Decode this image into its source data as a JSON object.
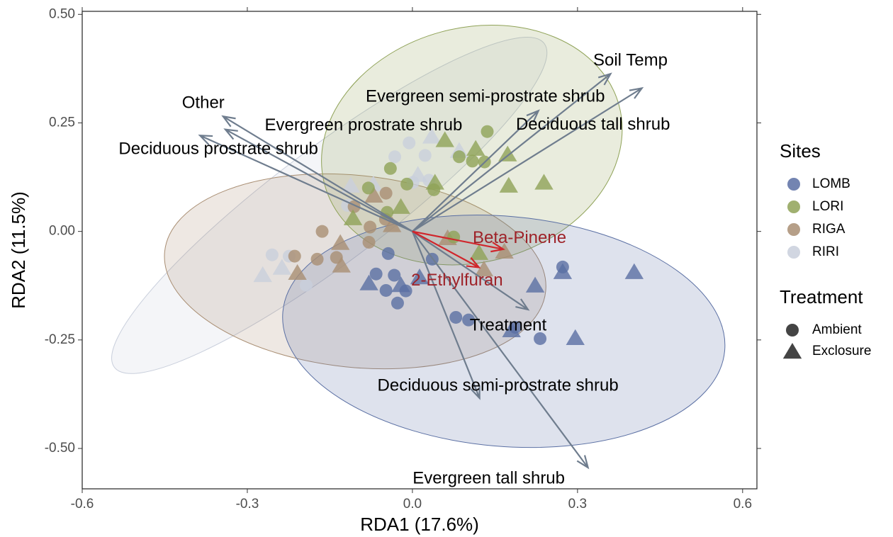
{
  "chart_data": {
    "type": "scatter",
    "x_label": "RDA1 (17.6%)",
    "y_label": "RDA2 (11.5%)",
    "xlim": [
      -0.6,
      0.626
    ],
    "ylim": [
      -0.593,
      0.507
    ],
    "xticks": [
      -0.6,
      -0.3,
      {
        "value": 0,
        "label": "0.0"
      },
      0.3,
      0.6
    ],
    "yticks": [
      {
        "value": 0.5,
        "label": "0.50"
      },
      0.25,
      {
        "value": 0,
        "label": "0.00"
      },
      -0.25,
      {
        "value": -0.5,
        "label": "-0.50"
      }
    ],
    "sites_title": "Sites",
    "sites": [
      {
        "name": "LOMB",
        "color": "#5a6fa3"
      },
      {
        "name": "LORI",
        "color": "#8fa257"
      },
      {
        "name": "RIGA",
        "color": "#a98e73"
      },
      {
        "name": "RIRI",
        "color": "#c9cfdc"
      }
    ],
    "treatment_title": "Treatment",
    "treatments": [
      {
        "name": "Ambient",
        "shape": "circle"
      },
      {
        "name": "Exclosure",
        "shape": "triangle"
      }
    ],
    "ellipses": [
      {
        "site": "RIRI",
        "cx": -0.151,
        "cy": 0.06,
        "rx": 0.489,
        "ry": 0.131,
        "angle": -37
      },
      {
        "site": "RIGA",
        "cx": -0.104,
        "cy": -0.092,
        "rx": 0.348,
        "ry": 0.221,
        "angle": 6
      },
      {
        "site": "LORI",
        "cx": 0.108,
        "cy": 0.199,
        "rx": 0.277,
        "ry": 0.27,
        "angle": -15
      },
      {
        "site": "LOMB",
        "cx": 0.166,
        "cy": -0.23,
        "rx": 0.403,
        "ry": 0.265,
        "angle": 5
      }
    ],
    "series": [
      {
        "site": "RIRI",
        "treatment": "Ambient",
        "x": [
          -0.006,
          0.023,
          -0.032,
          0.001,
          -0.118,
          -0.255,
          -0.224,
          -0.193,
          0.03
        ],
        "y": [
          0.204,
          0.175,
          0.172,
          0.113,
          0.06,
          -0.054,
          -0.057,
          -0.124,
          0.118
        ]
      },
      {
        "site": "RIRI",
        "treatment": "Exclosure",
        "x": [
          0.035,
          0.085,
          -0.112,
          -0.272,
          -0.237,
          0.01,
          -0.071
        ],
        "y": [
          0.219,
          0.186,
          0.106,
          -0.1,
          -0.083,
          0.131,
          0.109
        ]
      },
      {
        "site": "RIGA",
        "treatment": "Ambient",
        "x": [
          -0.164,
          -0.214,
          -0.173,
          -0.077,
          -0.048,
          -0.079,
          -0.106,
          -0.138,
          -0.049
        ],
        "y": [
          0.0,
          -0.057,
          -0.064,
          0.01,
          0.088,
          -0.025,
          0.057,
          -0.06,
          0.028
        ]
      },
      {
        "site": "RIGA",
        "treatment": "Exclosure",
        "x": [
          -0.131,
          -0.129,
          -0.07,
          -0.037,
          0.167,
          0.13,
          -0.209,
          0.064
        ],
        "y": [
          -0.026,
          -0.078,
          0.083,
          0.015,
          -0.046,
          -0.087,
          -0.095,
          -0.015
        ]
      },
      {
        "site": "LORI",
        "treatment": "Ambient",
        "x": [
          0.136,
          0.085,
          0.109,
          0.131,
          -0.04,
          -0.01,
          -0.046,
          -0.08,
          0.075,
          0.039
        ],
        "y": [
          0.23,
          0.172,
          0.162,
          0.16,
          0.145,
          0.109,
          0.044,
          0.1,
          -0.013,
          0.096
        ]
      },
      {
        "site": "LORI",
        "treatment": "Exclosure",
        "x": [
          0.059,
          0.115,
          0.173,
          0.239,
          0.175,
          -0.021,
          0.041,
          -0.108,
          0.121
        ],
        "y": [
          0.211,
          0.191,
          0.178,
          0.113,
          0.106,
          0.057,
          0.113,
          0.031,
          -0.049
        ]
      },
      {
        "site": "LOMB",
        "treatment": "Ambient",
        "x": [
          -0.044,
          -0.066,
          -0.033,
          -0.048,
          -0.012,
          -0.027,
          0.036,
          0.079,
          0.102,
          0.273,
          0.232,
          0.187
        ],
        "y": [
          -0.051,
          -0.098,
          -0.101,
          -0.136,
          -0.137,
          -0.165,
          -0.064,
          -0.198,
          -0.204,
          -0.082,
          -0.247,
          -0.221
        ]
      },
      {
        "site": "LOMB",
        "treatment": "Exclosure",
        "x": [
          -0.079,
          -0.021,
          0.013,
          0.223,
          0.273,
          0.403,
          0.18,
          0.296
        ],
        "y": [
          -0.119,
          -0.123,
          -0.105,
          -0.124,
          -0.093,
          -0.093,
          -0.227,
          -0.245
        ]
      }
    ],
    "arrows": [
      {
        "label": "Soil Temp",
        "x": 0.36,
        "y": 0.363,
        "color": "#6f7d8e",
        "label_color": "#000000"
      },
      {
        "label": "Deciduous tall shrub",
        "x": 0.417,
        "y": 0.33,
        "color": "#6f7d8e",
        "label_color": "#000000"
      },
      {
        "label": "Evergreen semi-prostrate shrub",
        "x": 0.229,
        "y": 0.278,
        "color": "#6f7d8e",
        "label_color": "#000000"
      },
      {
        "label": "Other",
        "x": -0.344,
        "y": 0.265,
        "color": "#6f7d8e",
        "label_color": "#000000"
      },
      {
        "label": "Evergreen prostrate shrub",
        "x": -0.34,
        "y": 0.235,
        "color": "#6f7d8e",
        "label_color": "#000000"
      },
      {
        "label": "Deciduous prostrate shrub",
        "x": -0.386,
        "y": 0.221,
        "color": "#6f7d8e",
        "label_color": "#000000"
      },
      {
        "label": "Treatment",
        "x": 0.21,
        "y": -0.18,
        "color": "#6f7d8e",
        "label_color": "#000000"
      },
      {
        "label": "Deciduous semi-prostrate shrub",
        "x": 0.122,
        "y": -0.384,
        "color": "#6f7d8e",
        "label_color": "#000000"
      },
      {
        "label": "Evergreen tall shrub",
        "x": 0.319,
        "y": -0.544,
        "color": "#6f7d8e",
        "label_color": "#000000"
      },
      {
        "label": "Beta-Pinene",
        "x": 0.165,
        "y": -0.041,
        "color": "#d0262c",
        "label_color": "#9e2228"
      },
      {
        "label": "2-Ethylfuran",
        "x": 0.121,
        "y": -0.083,
        "color": "#d0262c",
        "label_color": "#9e2228"
      }
    ]
  }
}
